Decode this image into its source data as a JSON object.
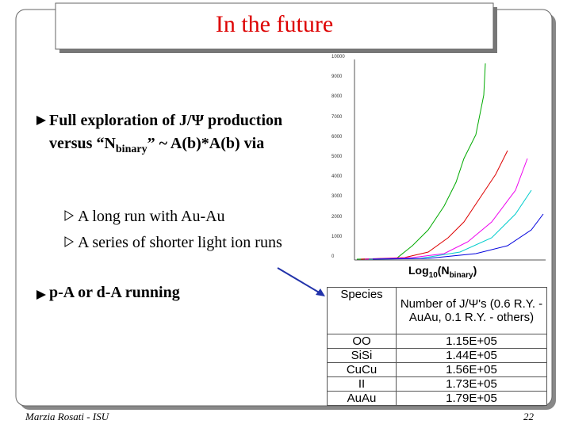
{
  "header": {
    "title": "In the future"
  },
  "bullets": [
    {
      "part1": "Full exploration of J/Ψ production versus “N",
      "subscript": "binary",
      "part2": "” ~ A(b)*A(b) via",
      "sub": [
        "A long run with Au-Au",
        "A series of shorter light ion runs"
      ]
    },
    {
      "text": "p-A or d-A running"
    }
  ],
  "figure": {
    "yticks": [
      "10000",
      "9000",
      "8000",
      "7000",
      "6000",
      "5000",
      "4000",
      "3000",
      "2000",
      "1000",
      "0"
    ],
    "xlabel_main": "Log",
    "xlabel_base": "10",
    "xlabel_open": "(N",
    "xlabel_sub": "binary",
    "xlabel_close": ")"
  },
  "table": {
    "header": [
      "Species",
      "Number of J/Ψ's (0.6 R.Y. - AuAu, 0.1 R.Y. - others)"
    ],
    "rows": [
      [
        "OO",
        "1.15E+05"
      ],
      [
        "SiSi",
        "1.44E+05"
      ],
      [
        "CuCu",
        "1.56E+05"
      ],
      [
        "II",
        "1.73E+05"
      ],
      [
        "AuAu",
        "1.79E+05"
      ]
    ]
  },
  "footer": {
    "author": "Marzia Rosati - ISU",
    "page": "22"
  }
}
